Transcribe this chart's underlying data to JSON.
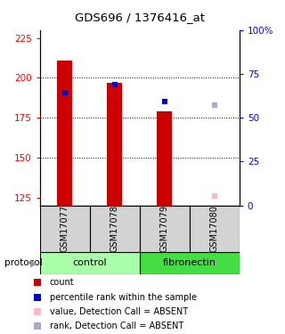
{
  "title": "GDS696 / 1376416_at",
  "samples": [
    "GSM17077",
    "GSM17078",
    "GSM17079",
    "GSM17080"
  ],
  "groups": [
    "control",
    "control",
    "fibronectin",
    "fibronectin"
  ],
  "bar_values": [
    211,
    197,
    179,
    null
  ],
  "bar_color": "#CC0000",
  "rank_values": [
    191,
    196,
    185,
    183
  ],
  "rank_colors": [
    "#0000CC",
    "#0000CC",
    "#0000CC",
    "#AAAACC"
  ],
  "absent_value": [
    null,
    null,
    null,
    126
  ],
  "absent_color": "#FFB6C1",
  "ylim_left": [
    120,
    230
  ],
  "ylim_right": [
    0,
    100
  ],
  "yticks_left": [
    125,
    150,
    175,
    200,
    225
  ],
  "yticks_right": [
    0,
    25,
    50,
    75,
    100
  ],
  "ytick_labels_right": [
    "0",
    "25",
    "50",
    "75",
    "100%"
  ],
  "bar_width": 0.3,
  "control_color": "#AAFFAA",
  "fibronectin_color": "#44DD44",
  "gray_color": "#D3D3D3",
  "legend_colors": [
    "#CC0000",
    "#0000CC",
    "#FFB6C1",
    "#AAAACC"
  ],
  "legend_labels": [
    "count",
    "percentile rank within the sample",
    "value, Detection Call = ABSENT",
    "rank, Detection Call = ABSENT"
  ]
}
